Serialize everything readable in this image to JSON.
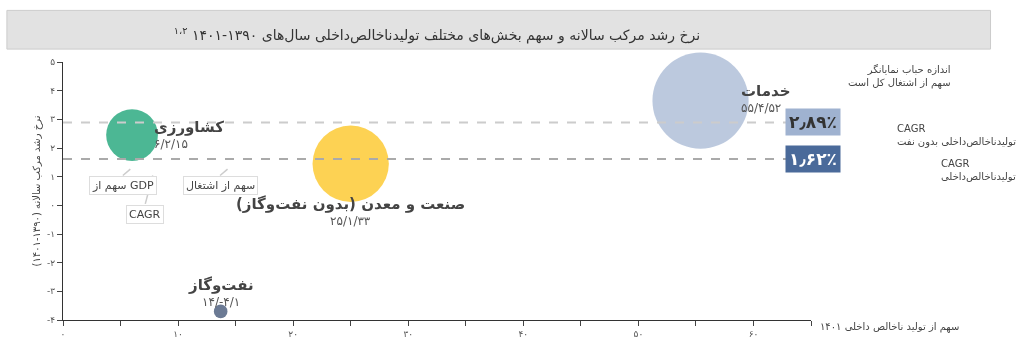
{
  "chart_data": {
    "type": "bubble",
    "title": "نرخ رشد مرکب سالانه و سهم بخش‌های مختلف تولیدناخالص‌داخلی سال‌های ۱۳۹۰-۱۴۰۱ $^{۱،۲}$",
    "xlabel": "سهم از تولید ناخالص داخلی ۱۴۰۱",
    "ylabel": "نرخ رشد مرکب سالانه (۱۳۹۰-۱۴۰۱)",
    "xlim": [
      0,
      65
    ],
    "ylim": [
      -4,
      5
    ],
    "xticks": [
      {
        "value": 0,
        "label": "۰"
      },
      {
        "value": 5,
        "label": null
      },
      {
        "value": 10,
        "label": "۱۰"
      },
      {
        "value": 15,
        "label": null
      },
      {
        "value": 20,
        "label": "۲۰"
      },
      {
        "value": 25,
        "label": null
      },
      {
        "value": 30,
        "label": "۳۰"
      },
      {
        "value": 35,
        "label": null
      },
      {
        "value": 40,
        "label": "۴۰"
      },
      {
        "value": 45,
        "label": null
      },
      {
        "value": 50,
        "label": "۵۰"
      },
      {
        "value": 55,
        "label": null
      },
      {
        "value": 60,
        "label": "۶۰"
      },
      {
        "value": 65,
        "label": null
      }
    ],
    "yticks": [
      {
        "value": -4,
        "label": "-۴"
      },
      {
        "value": -3,
        "label": "-۳"
      },
      {
        "value": -2,
        "label": "-۲"
      },
      {
        "value": -1,
        "label": "-۱"
      },
      {
        "value": 0,
        "label": "۰"
      },
      {
        "value": 1,
        "label": "۱"
      },
      {
        "value": 2,
        "label": "۲"
      },
      {
        "value": 3,
        "label": "۳"
      },
      {
        "value": 4,
        "label": "۴"
      },
      {
        "value": 5,
        "label": "۵"
      }
    ],
    "series": [
      {
        "name": "کشاورزی",
        "color": "#009966",
        "x": [
          6
        ],
        "values": [
          2.45
        ],
        "sizes": [
          0.29
        ]
      },
      {
        "name": "صنعت و معدن (بدون نفت‌وگاز)",
        "color": "#fcbf0a",
        "x": [
          25
        ],
        "values": [
          1.45
        ],
        "sizes": [
          0.63
        ]
      },
      {
        "name": "خدمات",
        "color": "#9fb2d0",
        "x": [
          55.4
        ],
        "values": [
          3.65
        ],
        "sizes": [
          1
        ]
      },
      {
        "name": "نفت‌وگاز",
        "color": "#2c4166",
        "x": [
          13.7
        ],
        "values": [
          -3.7
        ],
        "sizes": [
          0.02
        ]
      }
    ],
    "ref_lines": [
      {
        "axis": "y",
        "value": 2.89,
        "label": "۲٫۸۹٪",
        "color": "#cccccc",
        "line_style": "dashed"
      },
      {
        "axis": "y",
        "value": 1.62,
        "label": "۱٫۶۲٪",
        "color": "#aaaaaa",
        "line_style": "dashed"
      }
    ],
    "annotations": [
      "۶/۲/۱۵",
      "۲۵/۱/۳۳",
      "۵۵/۴/۵۲",
      "۱۴/-۴/۱",
      "سهم از GDP",
      "CAGR",
      "سهم از اشتغال",
      "اندازه حباب نمایانگر\nسهم از اشتغال کل است",
      "CAGR\nتولیدناخالص‌داخلی بدون نفت",
      "CAGR\nتولیدناخالص‌داخلی"
    ],
    "marker": "circle"
  }
}
